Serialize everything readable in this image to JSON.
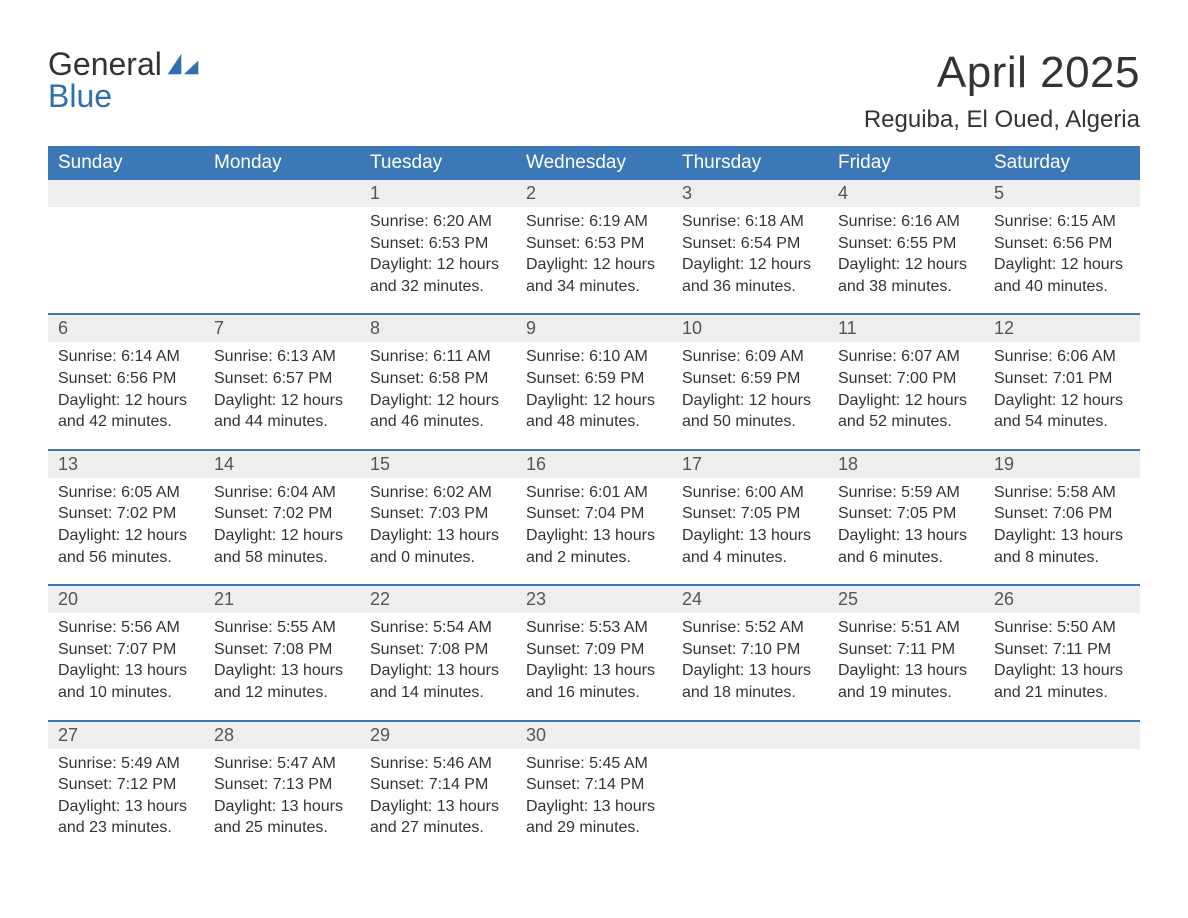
{
  "logo": {
    "word1": "General",
    "word2": "Blue",
    "icon_color": "#2f6fae",
    "text_color_general": "#333333",
    "text_color_blue": "#2f6fae"
  },
  "header": {
    "month_title": "April 2025",
    "location": "Reguiba, El Oued, Algeria"
  },
  "colors": {
    "header_bg": "#3b78b5",
    "header_text": "#ffffff",
    "daynum_bg": "#eeeeee",
    "week_border": "#3b78b5",
    "body_text": "#333333",
    "background": "#ffffff"
  },
  "typography": {
    "month_title_fontsize": 44,
    "location_fontsize": 24,
    "day_header_fontsize": 19,
    "daynum_fontsize": 18,
    "content_fontsize": 16,
    "logo_fontsize": 32,
    "font_family": "Arial"
  },
  "calendar": {
    "day_names": [
      "Sunday",
      "Monday",
      "Tuesday",
      "Wednesday",
      "Thursday",
      "Friday",
      "Saturday"
    ],
    "weeks": [
      [
        null,
        null,
        {
          "n": "1",
          "sunrise": "Sunrise: 6:20 AM",
          "sunset": "Sunset: 6:53 PM",
          "dl1": "Daylight: 12 hours",
          "dl2": "and 32 minutes."
        },
        {
          "n": "2",
          "sunrise": "Sunrise: 6:19 AM",
          "sunset": "Sunset: 6:53 PM",
          "dl1": "Daylight: 12 hours",
          "dl2": "and 34 minutes."
        },
        {
          "n": "3",
          "sunrise": "Sunrise: 6:18 AM",
          "sunset": "Sunset: 6:54 PM",
          "dl1": "Daylight: 12 hours",
          "dl2": "and 36 minutes."
        },
        {
          "n": "4",
          "sunrise": "Sunrise: 6:16 AM",
          "sunset": "Sunset: 6:55 PM",
          "dl1": "Daylight: 12 hours",
          "dl2": "and 38 minutes."
        },
        {
          "n": "5",
          "sunrise": "Sunrise: 6:15 AM",
          "sunset": "Sunset: 6:56 PM",
          "dl1": "Daylight: 12 hours",
          "dl2": "and 40 minutes."
        }
      ],
      [
        {
          "n": "6",
          "sunrise": "Sunrise: 6:14 AM",
          "sunset": "Sunset: 6:56 PM",
          "dl1": "Daylight: 12 hours",
          "dl2": "and 42 minutes."
        },
        {
          "n": "7",
          "sunrise": "Sunrise: 6:13 AM",
          "sunset": "Sunset: 6:57 PM",
          "dl1": "Daylight: 12 hours",
          "dl2": "and 44 minutes."
        },
        {
          "n": "8",
          "sunrise": "Sunrise: 6:11 AM",
          "sunset": "Sunset: 6:58 PM",
          "dl1": "Daylight: 12 hours",
          "dl2": "and 46 minutes."
        },
        {
          "n": "9",
          "sunrise": "Sunrise: 6:10 AM",
          "sunset": "Sunset: 6:59 PM",
          "dl1": "Daylight: 12 hours",
          "dl2": "and 48 minutes."
        },
        {
          "n": "10",
          "sunrise": "Sunrise: 6:09 AM",
          "sunset": "Sunset: 6:59 PM",
          "dl1": "Daylight: 12 hours",
          "dl2": "and 50 minutes."
        },
        {
          "n": "11",
          "sunrise": "Sunrise: 6:07 AM",
          "sunset": "Sunset: 7:00 PM",
          "dl1": "Daylight: 12 hours",
          "dl2": "and 52 minutes."
        },
        {
          "n": "12",
          "sunrise": "Sunrise: 6:06 AM",
          "sunset": "Sunset: 7:01 PM",
          "dl1": "Daylight: 12 hours",
          "dl2": "and 54 minutes."
        }
      ],
      [
        {
          "n": "13",
          "sunrise": "Sunrise: 6:05 AM",
          "sunset": "Sunset: 7:02 PM",
          "dl1": "Daylight: 12 hours",
          "dl2": "and 56 minutes."
        },
        {
          "n": "14",
          "sunrise": "Sunrise: 6:04 AM",
          "sunset": "Sunset: 7:02 PM",
          "dl1": "Daylight: 12 hours",
          "dl2": "and 58 minutes."
        },
        {
          "n": "15",
          "sunrise": "Sunrise: 6:02 AM",
          "sunset": "Sunset: 7:03 PM",
          "dl1": "Daylight: 13 hours",
          "dl2": "and 0 minutes."
        },
        {
          "n": "16",
          "sunrise": "Sunrise: 6:01 AM",
          "sunset": "Sunset: 7:04 PM",
          "dl1": "Daylight: 13 hours",
          "dl2": "and 2 minutes."
        },
        {
          "n": "17",
          "sunrise": "Sunrise: 6:00 AM",
          "sunset": "Sunset: 7:05 PM",
          "dl1": "Daylight: 13 hours",
          "dl2": "and 4 minutes."
        },
        {
          "n": "18",
          "sunrise": "Sunrise: 5:59 AM",
          "sunset": "Sunset: 7:05 PM",
          "dl1": "Daylight: 13 hours",
          "dl2": "and 6 minutes."
        },
        {
          "n": "19",
          "sunrise": "Sunrise: 5:58 AM",
          "sunset": "Sunset: 7:06 PM",
          "dl1": "Daylight: 13 hours",
          "dl2": "and 8 minutes."
        }
      ],
      [
        {
          "n": "20",
          "sunrise": "Sunrise: 5:56 AM",
          "sunset": "Sunset: 7:07 PM",
          "dl1": "Daylight: 13 hours",
          "dl2": "and 10 minutes."
        },
        {
          "n": "21",
          "sunrise": "Sunrise: 5:55 AM",
          "sunset": "Sunset: 7:08 PM",
          "dl1": "Daylight: 13 hours",
          "dl2": "and 12 minutes."
        },
        {
          "n": "22",
          "sunrise": "Sunrise: 5:54 AM",
          "sunset": "Sunset: 7:08 PM",
          "dl1": "Daylight: 13 hours",
          "dl2": "and 14 minutes."
        },
        {
          "n": "23",
          "sunrise": "Sunrise: 5:53 AM",
          "sunset": "Sunset: 7:09 PM",
          "dl1": "Daylight: 13 hours",
          "dl2": "and 16 minutes."
        },
        {
          "n": "24",
          "sunrise": "Sunrise: 5:52 AM",
          "sunset": "Sunset: 7:10 PM",
          "dl1": "Daylight: 13 hours",
          "dl2": "and 18 minutes."
        },
        {
          "n": "25",
          "sunrise": "Sunrise: 5:51 AM",
          "sunset": "Sunset: 7:11 PM",
          "dl1": "Daylight: 13 hours",
          "dl2": "and 19 minutes."
        },
        {
          "n": "26",
          "sunrise": "Sunrise: 5:50 AM",
          "sunset": "Sunset: 7:11 PM",
          "dl1": "Daylight: 13 hours",
          "dl2": "and 21 minutes."
        }
      ],
      [
        {
          "n": "27",
          "sunrise": "Sunrise: 5:49 AM",
          "sunset": "Sunset: 7:12 PM",
          "dl1": "Daylight: 13 hours",
          "dl2": "and 23 minutes."
        },
        {
          "n": "28",
          "sunrise": "Sunrise: 5:47 AM",
          "sunset": "Sunset: 7:13 PM",
          "dl1": "Daylight: 13 hours",
          "dl2": "and 25 minutes."
        },
        {
          "n": "29",
          "sunrise": "Sunrise: 5:46 AM",
          "sunset": "Sunset: 7:14 PM",
          "dl1": "Daylight: 13 hours",
          "dl2": "and 27 minutes."
        },
        {
          "n": "30",
          "sunrise": "Sunrise: 5:45 AM",
          "sunset": "Sunset: 7:14 PM",
          "dl1": "Daylight: 13 hours",
          "dl2": "and 29 minutes."
        },
        null,
        null,
        null
      ]
    ]
  }
}
